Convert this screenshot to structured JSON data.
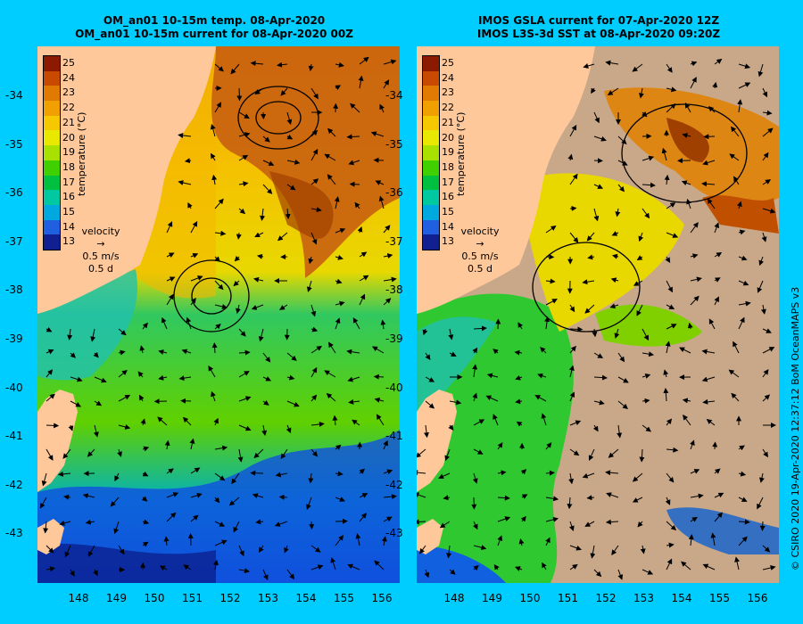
{
  "left_panel": {
    "title_line1": "OM_an01 10-15m temp. 08-Apr-2020",
    "title_line2": "OM_an01 10-15m current for 08-Apr-2020 00Z"
  },
  "right_panel": {
    "title_line1": "IMOS GSLA current for 07-Apr-2020 12Z",
    "title_line2": "IMOS L3S-3d SST at 08-Apr-2020 09:20Z"
  },
  "colorbar": {
    "label": "temperature (°C)",
    "ticks": [
      "25",
      "24",
      "23",
      "22",
      "21",
      "20",
      "19",
      "18",
      "17",
      "16",
      "15",
      "14",
      "13"
    ],
    "colors": [
      "#8b1a00",
      "#c84a00",
      "#e07a00",
      "#f0a000",
      "#f5c800",
      "#e8e800",
      "#a8e000",
      "#40d000",
      "#00c040",
      "#00c8a0",
      "#00a8e0",
      "#2060e0",
      "#102090"
    ]
  },
  "velocity_legend": {
    "title": "velocity",
    "speed": "0.5 m/s",
    "duration": "0.5 d"
  },
  "lat_labels": [
    "-34",
    "-35",
    "-36",
    "-37",
    "-38",
    "-39",
    "-40",
    "-41",
    "-42",
    "-43"
  ],
  "lon_labels": [
    "148",
    "149",
    "150",
    "151",
    "152",
    "153",
    "154",
    "155",
    "156"
  ],
  "credit": "© CSIRO 2020   19-Apr-2020 12:37:12 BoM OceanMAPS v3",
  "colors": {
    "frame": "#00cdff",
    "land": "#ffc89a",
    "cloud": "#c8a888"
  }
}
